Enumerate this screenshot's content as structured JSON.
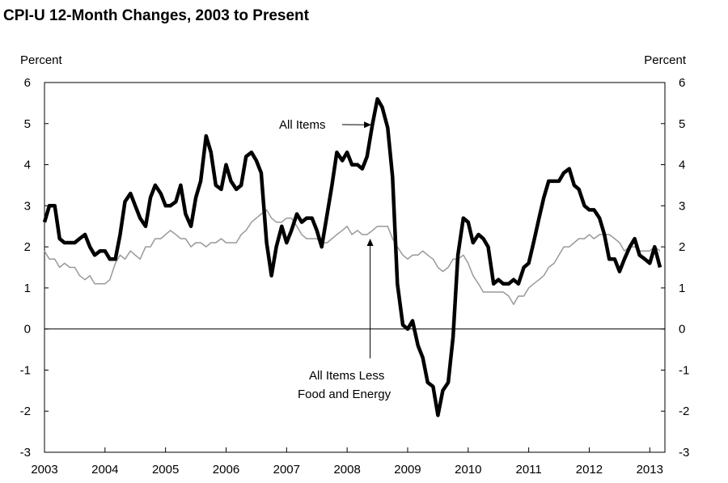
{
  "chart_data": {
    "type": "line",
    "title": "CPI-U 12-Month Changes, 2003 to Present",
    "ylabel_left": "Percent",
    "ylabel_right": "Percent",
    "ylim": [
      -3,
      6
    ],
    "yticks": [
      "6",
      "5",
      "4",
      "3",
      "2",
      "1",
      "0",
      "-1",
      "-2",
      "-3"
    ],
    "xlim": [
      2003.0,
      2013.25
    ],
    "xticks": [
      "2003",
      "2004",
      "2005",
      "2006",
      "2007",
      "2008",
      "2009",
      "2010",
      "2011",
      "2012",
      "2013"
    ],
    "grid": false,
    "zero_line": true,
    "series": [
      {
        "name": "All Items",
        "color": "#000000",
        "style": "thick",
        "x": [
          2003.0,
          2003.08,
          2003.17,
          2003.25,
          2003.33,
          2003.42,
          2003.5,
          2003.58,
          2003.67,
          2003.75,
          2003.83,
          2003.92,
          2004.0,
          2004.08,
          2004.17,
          2004.25,
          2004.33,
          2004.42,
          2004.5,
          2004.58,
          2004.67,
          2004.75,
          2004.83,
          2004.92,
          2005.0,
          2005.08,
          2005.17,
          2005.25,
          2005.33,
          2005.42,
          2005.5,
          2005.58,
          2005.67,
          2005.75,
          2005.83,
          2005.92,
          2006.0,
          2006.08,
          2006.17,
          2006.25,
          2006.33,
          2006.42,
          2006.5,
          2006.58,
          2006.67,
          2006.75,
          2006.83,
          2006.92,
          2007.0,
          2007.08,
          2007.17,
          2007.25,
          2007.33,
          2007.42,
          2007.5,
          2007.58,
          2007.67,
          2007.75,
          2007.83,
          2007.92,
          2008.0,
          2008.08,
          2008.17,
          2008.25,
          2008.33,
          2008.42,
          2008.5,
          2008.58,
          2008.67,
          2008.75,
          2008.83,
          2008.92,
          2009.0,
          2009.08,
          2009.17,
          2009.25,
          2009.33,
          2009.42,
          2009.5,
          2009.58,
          2009.67,
          2009.75,
          2009.83,
          2009.92,
          2010.0,
          2010.08,
          2010.17,
          2010.25,
          2010.33,
          2010.42,
          2010.5,
          2010.58,
          2010.67,
          2010.75,
          2010.83,
          2010.92,
          2011.0,
          2011.08,
          2011.17,
          2011.25,
          2011.33,
          2011.42,
          2011.5,
          2011.58,
          2011.67,
          2011.75,
          2011.83,
          2011.92,
          2012.0,
          2012.08,
          2012.17,
          2012.25,
          2012.33,
          2012.42,
          2012.5,
          2012.58,
          2012.67,
          2012.75,
          2012.83,
          2012.92,
          2013.0,
          2013.08,
          2013.17
        ],
        "values": [
          2.6,
          3.0,
          3.0,
          2.2,
          2.1,
          2.1,
          2.1,
          2.2,
          2.3,
          2.0,
          1.8,
          1.9,
          1.9,
          1.7,
          1.7,
          2.3,
          3.1,
          3.3,
          3.0,
          2.7,
          2.5,
          3.2,
          3.5,
          3.3,
          3.0,
          3.0,
          3.1,
          3.5,
          2.8,
          2.5,
          3.2,
          3.6,
          4.7,
          4.3,
          3.5,
          3.4,
          4.0,
          3.6,
          3.4,
          3.5,
          4.2,
          4.3,
          4.1,
          3.8,
          2.1,
          1.3,
          2.0,
          2.5,
          2.1,
          2.4,
          2.8,
          2.6,
          2.7,
          2.7,
          2.4,
          2.0,
          2.8,
          3.5,
          4.3,
          4.1,
          4.3,
          4.0,
          4.0,
          3.9,
          4.2,
          5.0,
          5.6,
          5.4,
          4.9,
          3.7,
          1.1,
          0.1,
          0.0,
          0.2,
          -0.4,
          -0.7,
          -1.3,
          -1.4,
          -2.1,
          -1.5,
          -1.3,
          -0.2,
          1.8,
          2.7,
          2.6,
          2.1,
          2.3,
          2.2,
          2.0,
          1.1,
          1.2,
          1.1,
          1.1,
          1.2,
          1.1,
          1.5,
          1.6,
          2.1,
          2.7,
          3.2,
          3.6,
          3.6,
          3.6,
          3.8,
          3.9,
          3.5,
          3.4,
          3.0,
          2.9,
          2.9,
          2.7,
          2.3,
          1.7,
          1.7,
          1.4,
          1.7,
          2.0,
          2.2,
          1.8,
          1.7,
          1.6,
          2.0,
          1.5
        ]
      },
      {
        "name": "All Items Less Food and Energy",
        "color": "#999999",
        "style": "thin",
        "x": [
          2003.0,
          2003.08,
          2003.17,
          2003.25,
          2003.33,
          2003.42,
          2003.5,
          2003.58,
          2003.67,
          2003.75,
          2003.83,
          2003.92,
          2004.0,
          2004.08,
          2004.17,
          2004.25,
          2004.33,
          2004.42,
          2004.5,
          2004.58,
          2004.67,
          2004.75,
          2004.83,
          2004.92,
          2005.0,
          2005.08,
          2005.17,
          2005.25,
          2005.33,
          2005.42,
          2005.5,
          2005.58,
          2005.67,
          2005.75,
          2005.83,
          2005.92,
          2006.0,
          2006.08,
          2006.17,
          2006.25,
          2006.33,
          2006.42,
          2006.5,
          2006.58,
          2006.67,
          2006.75,
          2006.83,
          2006.92,
          2007.0,
          2007.08,
          2007.17,
          2007.25,
          2007.33,
          2007.42,
          2007.5,
          2007.58,
          2007.67,
          2007.75,
          2007.83,
          2007.92,
          2008.0,
          2008.08,
          2008.17,
          2008.25,
          2008.33,
          2008.42,
          2008.5,
          2008.58,
          2008.67,
          2008.75,
          2008.83,
          2008.92,
          2009.0,
          2009.08,
          2009.17,
          2009.25,
          2009.33,
          2009.42,
          2009.5,
          2009.58,
          2009.67,
          2009.75,
          2009.83,
          2009.92,
          2010.0,
          2010.08,
          2010.17,
          2010.25,
          2010.33,
          2010.42,
          2010.5,
          2010.58,
          2010.67,
          2010.75,
          2010.83,
          2010.92,
          2011.0,
          2011.08,
          2011.17,
          2011.25,
          2011.33,
          2011.42,
          2011.5,
          2011.58,
          2011.67,
          2011.75,
          2011.83,
          2011.92,
          2012.0,
          2012.08,
          2012.17,
          2012.25,
          2012.33,
          2012.42,
          2012.5,
          2012.58,
          2012.67,
          2012.75,
          2012.83,
          2012.92,
          2013.0,
          2013.08,
          2013.17
        ],
        "values": [
          1.9,
          1.7,
          1.7,
          1.5,
          1.6,
          1.5,
          1.5,
          1.3,
          1.2,
          1.3,
          1.1,
          1.1,
          1.1,
          1.2,
          1.6,
          1.8,
          1.7,
          1.9,
          1.8,
          1.7,
          2.0,
          2.0,
          2.2,
          2.2,
          2.3,
          2.4,
          2.3,
          2.2,
          2.2,
          2.0,
          2.1,
          2.1,
          2.0,
          2.1,
          2.1,
          2.2,
          2.1,
          2.1,
          2.1,
          2.3,
          2.4,
          2.6,
          2.7,
          2.8,
          2.9,
          2.7,
          2.6,
          2.6,
          2.7,
          2.7,
          2.5,
          2.3,
          2.2,
          2.2,
          2.2,
          2.1,
          2.1,
          2.2,
          2.3,
          2.4,
          2.5,
          2.3,
          2.4,
          2.3,
          2.3,
          2.4,
          2.5,
          2.5,
          2.5,
          2.2,
          2.0,
          1.8,
          1.7,
          1.8,
          1.8,
          1.9,
          1.8,
          1.7,
          1.5,
          1.4,
          1.5,
          1.7,
          1.7,
          1.8,
          1.6,
          1.3,
          1.1,
          0.9,
          0.9,
          0.9,
          0.9,
          0.9,
          0.8,
          0.6,
          0.8,
          0.8,
          1.0,
          1.1,
          1.2,
          1.3,
          1.5,
          1.6,
          1.8,
          2.0,
          2.0,
          2.1,
          2.2,
          2.2,
          2.3,
          2.2,
          2.3,
          2.3,
          2.3,
          2.2,
          2.1,
          1.9,
          2.0,
          2.0,
          1.9,
          1.9,
          1.9,
          2.0,
          1.9
        ]
      }
    ],
    "annotations": [
      {
        "key": "all_items",
        "text": "All Items",
        "arrow_to": [
          2008.4,
          4.97
        ]
      },
      {
        "key": "core",
        "lines": [
          "All Items Less",
          "Food and Energy"
        ],
        "arrow_to": [
          2008.38,
          2.2
        ]
      }
    ]
  }
}
